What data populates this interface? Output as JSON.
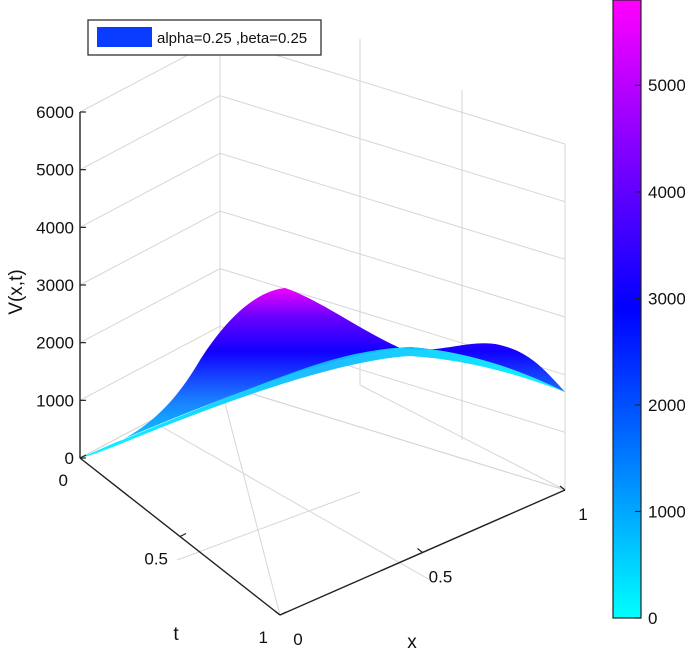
{
  "chart_data": {
    "type": "surface",
    "title": "",
    "zlabel": "V(x,t)",
    "xlabel": "x",
    "ylabel": "t",
    "xlim": [
      0,
      1
    ],
    "ylim": [
      0,
      1
    ],
    "zlim": [
      0,
      6000
    ],
    "x_ticks": [
      "0",
      "0.5",
      "1"
    ],
    "t_ticks": [
      "0",
      "0.5",
      "1"
    ],
    "z_ticks": [
      "0",
      "1000",
      "2000",
      "3000",
      "4000",
      "5000",
      "6000"
    ],
    "grid": true,
    "legend": {
      "position": "top-left",
      "entries": [
        {
          "label": "alpha=0.25 ,beta=0.25",
          "color": "#0a3cff"
        }
      ]
    },
    "colorbar": {
      "position": "right",
      "range": [
        0,
        5800
      ],
      "ticks": [
        "0",
        "1000",
        "2000",
        "3000",
        "4000",
        "5000"
      ],
      "colors": [
        "#00ffff",
        "#0000ff",
        "#ff00ff"
      ]
    },
    "surface_edges": {
      "t0": [
        [
          0,
          0
        ],
        [
          0.25,
          60
        ],
        [
          0.5,
          1250
        ],
        [
          0.75,
          2400
        ],
        [
          1,
          1150
        ]
      ],
      "x1": [
        [
          0,
          1150
        ],
        [
          0.5,
          1250
        ],
        [
          1,
          1150
        ]
      ]
    },
    "peak": {
      "x": 0,
      "t": 1,
      "v": 5800
    }
  }
}
